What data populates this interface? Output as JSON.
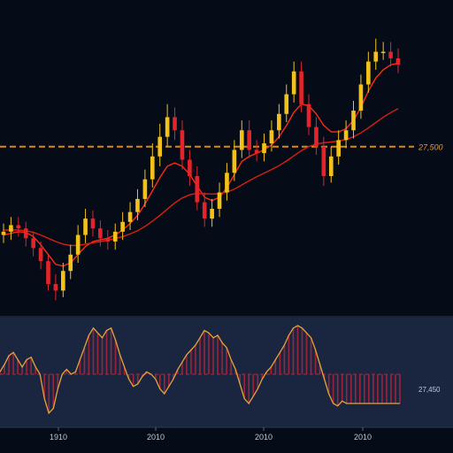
{
  "colors": {
    "background": "#060b18",
    "oscillator_panel": "#1a2640",
    "up_candle": "#f2c21b",
    "down_candle": "#e3242b",
    "fast_ma": "#ff2a14",
    "slow_ma": "#d81f12",
    "reference_line": "#e0870c",
    "oscillator_line": "#e8a23a",
    "oscillator_bars": "#b0253c",
    "label_text": "#c0c6d4",
    "value_label": "#e79a2c"
  },
  "chart_data": [
    {
      "type": "candlestick",
      "title": "",
      "xlabel": "",
      "ylabel": "",
      "x_tick_labels": [
        "1910",
        "2010",
        "2010",
        "2010"
      ],
      "reference_line": {
        "value": 27500,
        "label": "27,500"
      },
      "ylim": [
        22300,
        30900
      ],
      "grid": false,
      "legend": "none",
      "series": [
        {
          "kind": "ohlc",
          "open": [
            24800,
            24900,
            25100,
            25000,
            24700,
            24400,
            24000,
            23300,
            23100,
            23700,
            24200,
            24800,
            25300,
            25000,
            24700,
            24600,
            24900,
            25200,
            25500,
            25900,
            26500,
            27200,
            27800,
            28400,
            28000,
            27100,
            26600,
            25800,
            25300,
            25600,
            26100,
            26700,
            27400,
            28000,
            27400,
            27300,
            27600,
            28000,
            28500,
            29100,
            29800,
            28800,
            28100,
            27500,
            26600,
            27200,
            27700,
            28000,
            28600,
            29400,
            30100,
            30400,
            30400,
            30200
          ],
          "close": [
            24900,
            25100,
            25000,
            24700,
            24400,
            24000,
            23300,
            23100,
            23700,
            24200,
            24800,
            25300,
            25000,
            24700,
            24600,
            24900,
            25200,
            25500,
            25900,
            26500,
            27200,
            27800,
            28400,
            28000,
            27100,
            26600,
            25800,
            25300,
            25600,
            26100,
            26700,
            27400,
            28000,
            27400,
            27300,
            27600,
            28000,
            28500,
            29100,
            29800,
            28800,
            28100,
            27500,
            26600,
            27200,
            27700,
            28000,
            28600,
            29400,
            30100,
            30400,
            30400,
            30200,
            30000
          ],
          "high": [
            25150,
            25350,
            25350,
            25200,
            24900,
            24600,
            24200,
            23600,
            23950,
            24500,
            25100,
            25600,
            25550,
            25250,
            24950,
            25150,
            25500,
            25800,
            26200,
            26800,
            27600,
            28200,
            28800,
            28700,
            28300,
            27400,
            26900,
            26100,
            25900,
            26400,
            27000,
            27700,
            28300,
            28300,
            27700,
            27900,
            28300,
            28800,
            29400,
            30100,
            30100,
            29100,
            28400,
            27800,
            27500,
            28000,
            28300,
            28900,
            29700,
            30400,
            30800,
            30700,
            30700,
            30500
          ],
          "low": [
            24550,
            24650,
            24750,
            24450,
            24150,
            23750,
            23100,
            22800,
            22900,
            23450,
            23950,
            24550,
            24750,
            24450,
            24350,
            24350,
            24650,
            24950,
            25250,
            25650,
            26250,
            26900,
            27500,
            27700,
            26800,
            26300,
            25550,
            25050,
            25050,
            25350,
            25850,
            26450,
            27150,
            27150,
            27050,
            27050,
            27350,
            27750,
            28250,
            28850,
            28550,
            27850,
            27250,
            26300,
            26400,
            26950,
            27450,
            27750,
            28350,
            29150,
            29850,
            30150,
            29950,
            29750
          ]
        },
        {
          "kind": "line",
          "role": "fast_ma",
          "values": [
            24800,
            24850,
            24900,
            24880,
            24750,
            24500,
            24200,
            23900,
            23850,
            23950,
            24200,
            24450,
            24600,
            24650,
            24700,
            24800,
            24950,
            25150,
            25400,
            25750,
            26150,
            26550,
            26900,
            27000,
            26900,
            26650,
            26300,
            25950,
            25850,
            25950,
            26250,
            26650,
            27050,
            27200,
            27300,
            27400,
            27550,
            27800,
            28150,
            28550,
            28800,
            28750,
            28500,
            28150,
            27950,
            27950,
            28050,
            28300,
            28700,
            29200,
            29600,
            29850,
            30000,
            30050
          ]
        },
        {
          "kind": "line",
          "role": "slow_ma",
          "values": [
            24950,
            24950,
            24950,
            24930,
            24880,
            24800,
            24700,
            24600,
            24520,
            24480,
            24480,
            24520,
            24560,
            24600,
            24640,
            24690,
            24750,
            24830,
            24930,
            25060,
            25220,
            25400,
            25590,
            25780,
            25930,
            26030,
            26070,
            26060,
            26050,
            26060,
            26110,
            26200,
            26330,
            26460,
            26580,
            26690,
            26800,
            26920,
            27060,
            27220,
            27380,
            27500,
            27580,
            27620,
            27640,
            27670,
            27720,
            27800,
            27920,
            28070,
            28240,
            28400,
            28540,
            28660
          ]
        }
      ]
    },
    {
      "type": "area",
      "role": "oscillator",
      "title": "",
      "value_label": "27,450",
      "ylim": [
        -1,
        1
      ],
      "x": [
        0,
        1,
        2,
        3,
        4,
        5,
        6,
        7,
        8,
        9,
        10,
        11,
        12,
        13,
        14,
        15,
        16,
        17,
        18,
        19,
        20,
        21,
        22,
        23,
        24,
        25,
        26,
        27,
        28,
        29,
        30,
        31,
        32,
        33,
        34,
        35,
        36,
        37,
        38,
        39,
        40,
        41,
        42,
        43,
        44,
        45,
        46,
        47,
        48,
        49,
        50,
        51,
        52,
        53,
        54,
        55,
        56,
        57,
        58,
        59,
        60,
        61,
        62,
        63,
        64,
        65,
        66,
        67,
        68,
        69,
        70,
        71,
        72,
        73,
        74,
        75,
        76,
        77,
        78,
        79,
        80,
        81,
        82,
        83,
        84,
        85,
        86,
        87,
        88,
        89,
        90
      ],
      "values": [
        0.05,
        0.2,
        0.38,
        0.45,
        0.3,
        0.15,
        0.3,
        0.35,
        0.15,
        0.0,
        -0.5,
        -0.8,
        -0.7,
        -0.3,
        0.0,
        0.1,
        0.0,
        0.05,
        0.3,
        0.55,
        0.8,
        0.95,
        0.85,
        0.75,
        0.9,
        0.95,
        0.7,
        0.4,
        0.15,
        -0.1,
        -0.25,
        -0.2,
        -0.05,
        0.05,
        0.0,
        -0.1,
        -0.3,
        -0.4,
        -0.25,
        -0.1,
        0.1,
        0.25,
        0.4,
        0.5,
        0.6,
        0.75,
        0.9,
        0.85,
        0.75,
        0.8,
        0.65,
        0.55,
        0.3,
        0.1,
        -0.2,
        -0.5,
        -0.6,
        -0.45,
        -0.3,
        -0.1,
        0.05,
        0.15,
        0.3,
        0.45,
        0.6,
        0.8,
        0.95,
        1.0,
        0.95,
        0.85,
        0.75,
        0.5,
        0.2,
        -0.1,
        -0.4,
        -0.6,
        -0.65,
        -0.55,
        -0.6,
        -0.6,
        -0.6,
        -0.6,
        -0.6,
        -0.6,
        -0.6,
        -0.6,
        -0.6,
        -0.6,
        -0.6,
        -0.6,
        -0.6
      ]
    }
  ]
}
